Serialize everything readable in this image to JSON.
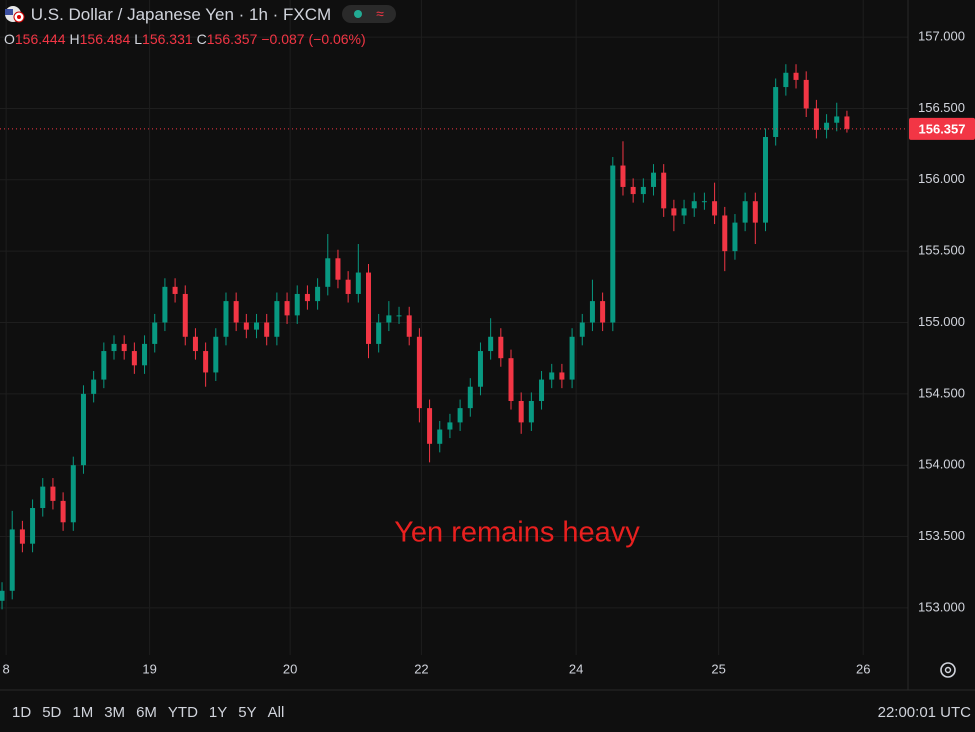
{
  "chart_data": {
    "type": "candlestick",
    "title": "U.S. Dollar / Japanese Yen · 1h · FXCM",
    "ohlc_labels": [
      "O",
      "H",
      "L",
      "C"
    ],
    "change": "−0.087 (−0.06%)",
    "annotation": "Yen remains heavy",
    "up_color": "#089981",
    "down_color": "#f23645",
    "grid": true,
    "open": [
      153.05,
      153.12,
      153.55,
      153.45,
      153.7,
      153.85,
      153.75,
      153.6,
      154.0,
      154.5,
      154.6,
      154.8,
      154.85,
      154.8,
      154.7,
      154.85,
      155.0,
      155.25,
      155.2,
      154.9,
      154.8,
      154.65,
      154.9,
      155.15,
      155.0,
      154.95,
      155.0,
      154.9,
      155.15,
      155.05,
      155.2,
      155.15,
      155.25,
      155.45,
      155.3,
      155.2,
      155.35,
      154.85,
      155.0,
      155.05,
      155.05,
      154.9,
      154.4,
      154.15,
      154.25,
      154.3,
      154.4,
      154.55,
      154.8,
      154.9,
      154.75,
      154.45,
      154.3,
      154.45,
      154.6,
      154.65,
      154.6,
      154.9,
      155.0,
      155.15,
      155.0,
      156.1,
      155.95,
      155.9,
      155.95,
      156.05,
      155.8,
      155.75,
      155.8,
      155.85,
      155.85,
      155.75,
      155.5,
      155.7,
      155.85,
      155.7,
      156.3,
      156.65,
      156.75,
      156.7,
      156.5,
      156.35,
      156.4,
      156.444
    ],
    "high": [
      153.18,
      153.68,
      153.61,
      153.76,
      153.91,
      153.91,
      153.81,
      154.06,
      154.56,
      154.66,
      154.86,
      154.91,
      154.91,
      154.86,
      154.91,
      155.06,
      155.31,
      155.31,
      155.26,
      154.96,
      154.86,
      154.96,
      155.21,
      155.21,
      155.06,
      155.06,
      155.06,
      155.21,
      155.21,
      155.26,
      155.26,
      155.31,
      155.62,
      155.51,
      155.36,
      155.55,
      155.41,
      155.06,
      155.15,
      155.11,
      155.11,
      154.96,
      154.46,
      154.31,
      154.36,
      154.46,
      154.61,
      154.86,
      155.03,
      154.96,
      154.81,
      154.51,
      154.51,
      154.66,
      154.71,
      154.71,
      154.96,
      155.06,
      155.3,
      155.21,
      156.16,
      156.27,
      156.01,
      156.01,
      156.11,
      156.11,
      155.86,
      155.86,
      155.91,
      155.91,
      155.98,
      155.81,
      155.76,
      155.91,
      155.91,
      156.36,
      156.71,
      156.81,
      156.81,
      156.76,
      156.56,
      156.46,
      156.54,
      156.484
    ],
    "low": [
      152.99,
      153.06,
      153.39,
      153.39,
      153.64,
      153.69,
      153.54,
      153.54,
      153.94,
      154.44,
      154.54,
      154.74,
      154.74,
      154.64,
      154.64,
      154.79,
      154.94,
      155.14,
      154.84,
      154.74,
      154.55,
      154.59,
      154.84,
      154.94,
      154.89,
      154.89,
      154.84,
      154.84,
      154.99,
      154.99,
      155.09,
      155.09,
      155.19,
      155.24,
      155.14,
      155.14,
      154.75,
      154.79,
      154.94,
      154.99,
      154.84,
      154.3,
      154.02,
      154.09,
      154.19,
      154.24,
      154.34,
      154.49,
      154.74,
      154.69,
      154.39,
      154.22,
      154.24,
      154.39,
      154.54,
      154.54,
      154.54,
      154.84,
      154.94,
      154.94,
      154.94,
      155.89,
      155.84,
      155.84,
      155.89,
      155.74,
      155.64,
      155.69,
      155.74,
      155.79,
      155.69,
      155.36,
      155.44,
      155.64,
      155.55,
      155.64,
      156.24,
      156.59,
      156.64,
      156.44,
      156.29,
      156.29,
      156.34,
      156.331
    ],
    "close": [
      153.12,
      153.55,
      153.45,
      153.7,
      153.85,
      153.75,
      153.6,
      154.0,
      154.5,
      154.6,
      154.8,
      154.85,
      154.8,
      154.7,
      154.85,
      155.0,
      155.25,
      155.2,
      154.9,
      154.8,
      154.65,
      154.9,
      155.15,
      155.0,
      154.95,
      155.0,
      154.9,
      155.15,
      155.05,
      155.2,
      155.15,
      155.25,
      155.45,
      155.3,
      155.2,
      155.35,
      154.85,
      155.0,
      155.05,
      155.05,
      154.9,
      154.4,
      154.15,
      154.25,
      154.3,
      154.4,
      154.55,
      154.8,
      154.9,
      154.75,
      154.45,
      154.3,
      154.45,
      154.6,
      154.65,
      154.6,
      154.9,
      155.0,
      155.15,
      155.0,
      156.1,
      155.95,
      155.9,
      155.95,
      156.05,
      155.8,
      155.75,
      155.8,
      155.85,
      155.85,
      155.75,
      155.5,
      155.7,
      155.85,
      155.7,
      156.3,
      156.65,
      156.75,
      156.7,
      156.5,
      156.35,
      156.4,
      156.444,
      156.357
    ],
    "xlim": [
      -0.2,
      89
    ],
    "xticks": [
      {
        "value": 0.4,
        "label": "8"
      },
      {
        "value": 14.5,
        "label": "19"
      },
      {
        "value": 28.3,
        "label": "20"
      },
      {
        "value": 41.2,
        "label": "22"
      },
      {
        "value": 56.4,
        "label": "24"
      },
      {
        "value": 70.4,
        "label": "25"
      },
      {
        "value": 84.6,
        "label": "26"
      }
    ],
    "ylim": [
      152.67,
      157.26
    ],
    "yticks": [
      {
        "value": 153,
        "label": "153.000"
      },
      {
        "value": 153.5,
        "label": "153.500"
      },
      {
        "value": 154,
        "label": "154.000"
      },
      {
        "value": 154.5,
        "label": "154.500"
      },
      {
        "value": 155,
        "label": "155.000"
      },
      {
        "value": 155.5,
        "label": "155.500"
      },
      {
        "value": 156,
        "label": "156.000"
      },
      {
        "value": 156.5,
        "label": "156.500"
      },
      {
        "value": 157,
        "label": "157.000"
      }
    ],
    "timeframes": [
      "1D",
      "5D",
      "1M",
      "3M",
      "6M",
      "YTD",
      "1Y",
      "5Y",
      "All"
    ],
    "clock": "22:00:01 UTC"
  }
}
